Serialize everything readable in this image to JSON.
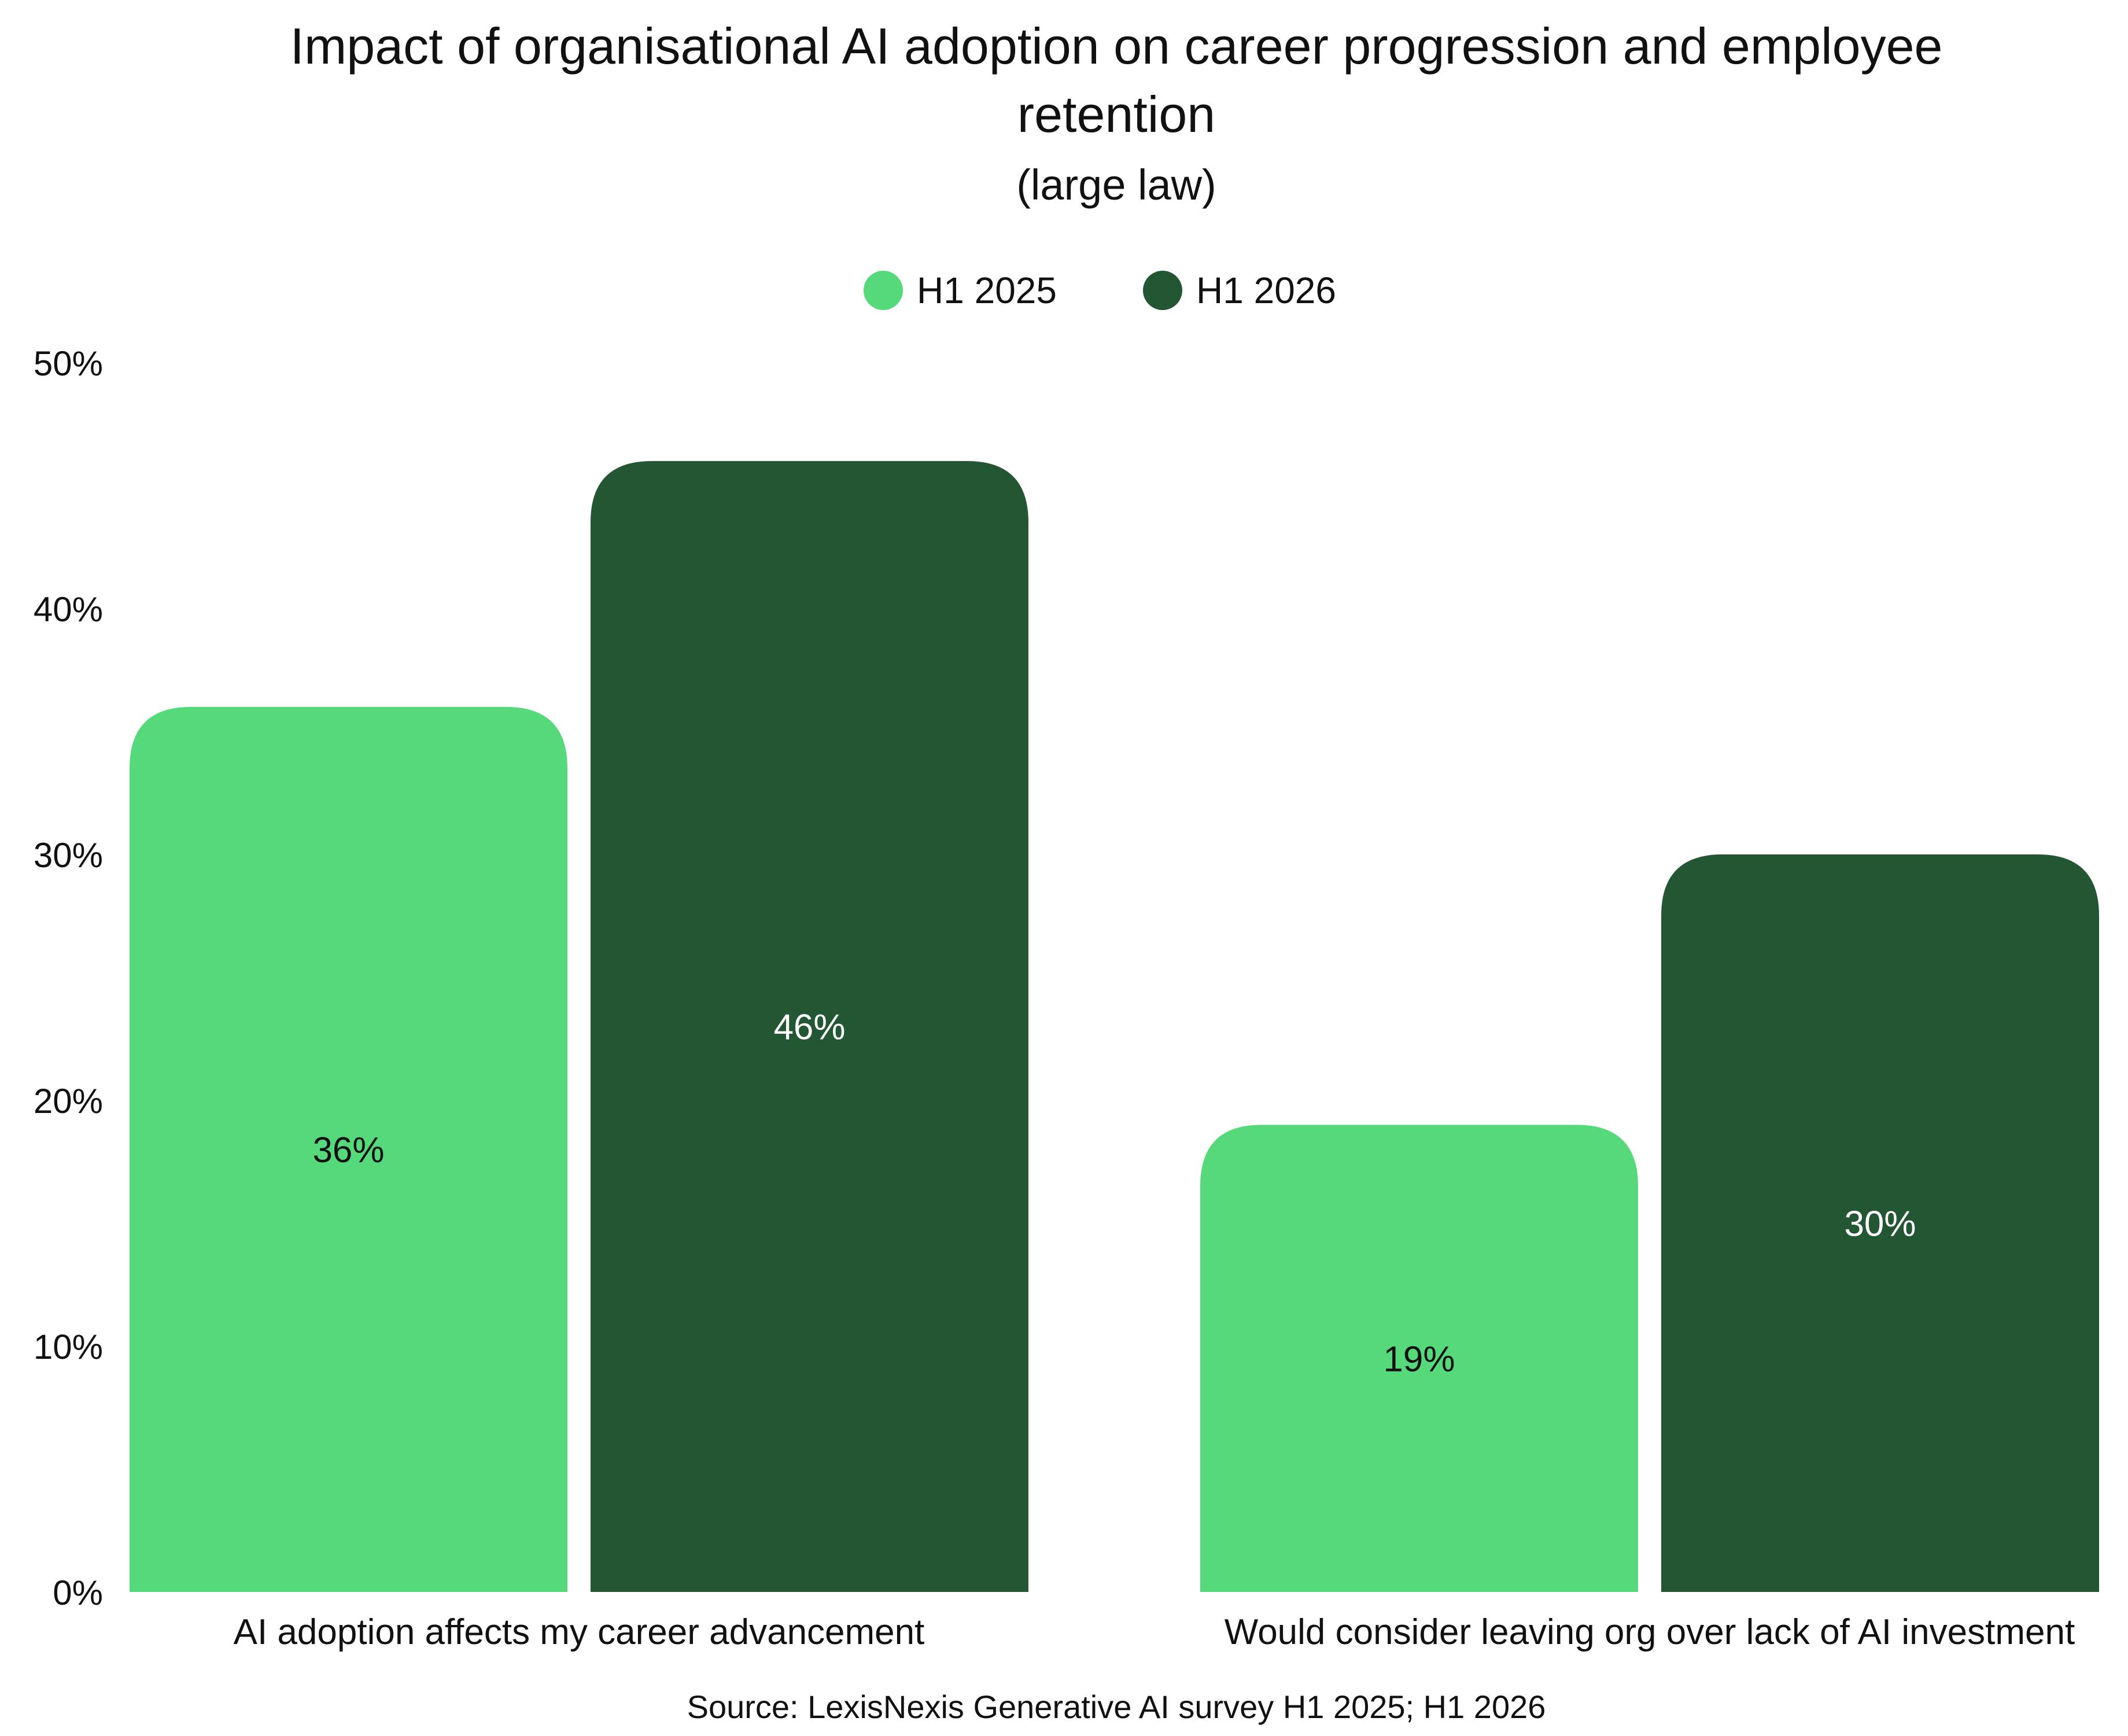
{
  "chart_data": {
    "type": "bar",
    "title_lines": [
      "Impact of organisational AI adoption on career progression and employee",
      "retention"
    ],
    "subtitle": "(large law)",
    "categories": [
      "AI adoption affects my career advancement",
      "Would consider leaving org over lack of AI investment"
    ],
    "series": [
      {
        "name": "H1 2025",
        "color": "#55d97a",
        "label_color": "#111111",
        "values": [
          36,
          19
        ]
      },
      {
        "name": "H1 2026",
        "color": "#235633",
        "label_color": "#ffffff",
        "values": [
          46,
          30
        ]
      }
    ],
    "data_labels": [
      [
        "36%",
        "19%"
      ],
      [
        "46%",
        "30%"
      ]
    ],
    "yticks": [
      "0%",
      "10%",
      "20%",
      "30%",
      "40%",
      "50%"
    ],
    "ytick_values": [
      0,
      10,
      20,
      30,
      40,
      50
    ],
    "ylim": [
      0,
      50
    ],
    "grid": false,
    "legend_position": "top-center",
    "source": "Source: LexisNexis Generative AI survey H1 2025; H1 2026"
  }
}
